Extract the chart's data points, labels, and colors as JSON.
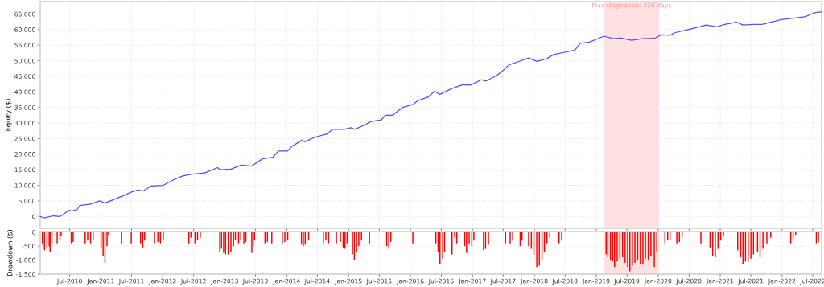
{
  "chart_data": [
    {
      "type": "line",
      "ylabel": "Equity ($)",
      "xlim": [
        "2010-01-08",
        "2022-08-22"
      ],
      "ylim": [
        -3800,
        69000
      ],
      "yticks": [
        0,
        {
          "value": 5000,
          "label": "5,000"
        },
        {
          "value": 10000,
          "label": "10,000"
        },
        {
          "value": 15000,
          "label": "15,000"
        },
        {
          "value": 20000,
          "label": "20,000"
        },
        {
          "value": 25000,
          "label": "25,000"
        },
        {
          "value": 30000,
          "label": "30,000"
        },
        {
          "value": 35000,
          "label": "35,000"
        },
        {
          "value": 40000,
          "label": "40,000"
        },
        {
          "value": 45000,
          "label": "45,000"
        },
        {
          "value": 50000,
          "label": "50,000"
        },
        {
          "value": 55000,
          "label": "55,000"
        },
        {
          "value": 60000,
          "label": "60,000"
        },
        {
          "value": 65000,
          "label": "65,000"
        }
      ],
      "xticks": [
        {
          "value": "2010-07-01",
          "label": null
        },
        {
          "value": "2011-01-01",
          "label": null
        },
        {
          "value": "2011-07-01",
          "label": null
        },
        {
          "value": "2012-01-01",
          "label": null
        },
        {
          "value": "2012-07-01",
          "label": null
        },
        {
          "value": "2013-01-01",
          "label": null
        },
        {
          "value": "2013-07-01",
          "label": null
        },
        {
          "value": "2014-01-01",
          "label": null
        },
        {
          "value": "2014-07-01",
          "label": null
        },
        {
          "value": "2015-01-01",
          "label": null
        },
        {
          "value": "2015-07-01",
          "label": null
        },
        {
          "value": "2016-01-01",
          "label": null
        },
        {
          "value": "2016-07-01",
          "label": null
        },
        {
          "value": "2017-01-01",
          "label": null
        },
        {
          "value": "2017-07-01",
          "label": null
        },
        {
          "value": "2018-01-01",
          "label": null
        },
        {
          "value": "2018-07-01",
          "label": null
        },
        {
          "value": "2019-01-01",
          "label": null
        },
        {
          "value": "2019-07-01",
          "label": null
        },
        {
          "value": "2020-01-01",
          "label": null
        },
        {
          "value": "2020-07-01",
          "label": null
        },
        {
          "value": "2021-01-01",
          "label": null
        },
        {
          "value": "2021-07-01",
          "label": null
        },
        {
          "value": "2022-01-01",
          "label": null
        },
        {
          "value": "2022-07-01",
          "label": null
        }
      ],
      "tick_labels": "y",
      "grid": true,
      "bands": [
        {
          "axis": "x",
          "from": "2019-02-15",
          "to": "2020-01-07",
          "label": "Max stagnation: 326 days",
          "color": "#ffe1e1"
        }
      ],
      "series": [
        {
          "color": "#4f4ff5",
          "x": [
            "2010-01-08",
            "2010-02-01",
            "2010-03-25",
            "2010-05-05",
            "2010-06-28",
            "2010-07-13",
            "2010-08-13",
            "2010-08-30",
            "2010-11-01",
            "2010-12-25",
            "2011-01-25",
            "2011-05-06",
            "2011-06-28",
            "2011-08-06",
            "2011-09-08",
            "2011-10-25",
            "2012-01-03",
            "2012-03-13",
            "2012-04-28",
            "2012-06-15",
            "2012-09-03",
            "2012-11-19",
            "2012-12-04",
            "2013-02-06",
            "2013-04-07",
            "2013-06-09",
            "2013-08-10",
            "2013-10-12",
            "2013-11-12",
            "2014-01-06",
            "2014-01-31",
            "2014-04-01",
            "2014-04-16",
            "2014-06-19",
            "2014-08-28",
            "2014-09-28",
            "2014-12-07",
            "2015-01-15",
            "2015-02-08",
            "2015-04-10",
            "2015-05-12",
            "2015-07-13",
            "2015-08-06",
            "2015-09-15",
            "2015-11-16",
            "2016-01-18",
            "2016-02-13",
            "2016-04-13",
            "2016-05-22",
            "2016-06-22",
            "2016-09-01",
            "2016-11-04",
            "2016-12-19",
            "2017-02-22",
            "2017-03-22",
            "2017-05-25",
            "2017-07-01",
            "2017-08-04",
            "2017-09-28",
            "2017-11-28",
            "2018-01-16",
            "2018-03-16",
            "2018-04-25",
            "2018-07-04",
            "2018-08-28",
            "2018-09-28",
            "2018-11-22",
            "2019-02-16",
            "2019-04-10",
            "2019-05-28",
            "2019-07-28",
            "2019-10-01",
            "2019-12-10",
            "2020-01-19",
            "2020-03-13",
            "2020-04-07",
            "2020-07-10",
            "2020-09-01",
            "2020-10-10",
            "2020-12-13",
            "2021-01-28",
            "2021-04-07",
            "2021-05-16",
            "2021-07-16",
            "2021-09-04",
            "2021-12-28",
            "2022-05-16",
            "2022-07-10",
            "2022-08-20"
          ],
          "values": [
            0,
            -500,
            200,
            0,
            2000,
            1700,
            2200,
            3500,
            4000,
            5000,
            4300,
            6500,
            7800,
            8500,
            8200,
            9800,
            10000,
            12000,
            13000,
            13500,
            14000,
            15700,
            15000,
            15200,
            16500,
            16200,
            18500,
            19000,
            21000,
            21000,
            22500,
            24500,
            24000,
            25500,
            26500,
            28000,
            28000,
            28500,
            28000,
            29500,
            30500,
            31000,
            32500,
            32500,
            35000,
            36000,
            37200,
            38300,
            40200,
            39200,
            41100,
            42300,
            42200,
            43900,
            43500,
            45300,
            46900,
            48700,
            49700,
            50900,
            49800,
            50700,
            52000,
            52800,
            53400,
            55600,
            56000,
            57900,
            57100,
            57300,
            56600,
            57100,
            57200,
            58300,
            58200,
            59000,
            60200,
            60900,
            61500,
            60900,
            61700,
            62400,
            61500,
            61700,
            61700,
            63200,
            64100,
            65400,
            65700
          ]
        }
      ]
    },
    {
      "type": "bar",
      "ylabel": "Drawdown ($)",
      "xlim": [
        "2010-01-08",
        "2022-08-22"
      ],
      "ylim": [
        -1500,
        20
      ],
      "yticks": [
        0,
        {
          "value": -500,
          "label": "-500"
        },
        {
          "value": -1000,
          "label": "-1,000"
        },
        {
          "value": -1500,
          "label": "-1,500"
        }
      ],
      "xticks": [
        {
          "value": "2010-07-01",
          "label": "Jul-2010"
        },
        {
          "value": "2011-01-01",
          "label": "Jan-2011"
        },
        {
          "value": "2011-07-01",
          "label": "Jul-2011"
        },
        {
          "value": "2012-01-01",
          "label": "Jan-2012"
        },
        {
          "value": "2012-07-01",
          "label": "Jul-2012"
        },
        {
          "value": "2013-01-01",
          "label": "Jan-2013"
        },
        {
          "value": "2013-07-01",
          "label": "Jul-2013"
        },
        {
          "value": "2014-01-01",
          "label": "Jan-2014"
        },
        {
          "value": "2014-07-01",
          "label": "Jul-2014"
        },
        {
          "value": "2015-01-01",
          "label": "Jan-2015"
        },
        {
          "value": "2015-07-01",
          "label": "Jul-2015"
        },
        {
          "value": "2016-01-01",
          "label": "Jan-2016"
        },
        {
          "value": "2016-07-01",
          "label": "Jul-2016"
        },
        {
          "value": "2017-01-01",
          "label": "Jan-2017"
        },
        {
          "value": "2017-07-01",
          "label": "Jul-2017"
        },
        {
          "value": "2018-01-01",
          "label": "Jan-2018"
        },
        {
          "value": "2018-07-01",
          "label": "Jul-2018"
        },
        {
          "value": "2019-01-01",
          "label": "Jan-2019"
        },
        {
          "value": "2019-07-01",
          "label": "Jul-2019"
        },
        {
          "value": "2020-01-01",
          "label": "Jan-2020"
        },
        {
          "value": "2020-07-01",
          "label": "Jul-2020"
        },
        {
          "value": "2021-01-01",
          "label": "Jan-2021"
        },
        {
          "value": "2021-07-01",
          "label": "Jul-2021"
        },
        {
          "value": "2022-01-01",
          "label": "Jan-2022"
        },
        {
          "value": "2022-07-01",
          "label": "Jul-2022"
        }
      ],
      "grid": true,
      "bands": [
        {
          "axis": "x",
          "from": "2019-02-15",
          "to": "2020-01-07",
          "color": "#ffe1e1"
        }
      ],
      "series": [
        {
          "color": "#ff0000",
          "x": [
            "2010-01-21",
            "2010-02-02",
            "2010-02-17",
            "2010-03-02",
            "2010-03-07",
            "2010-03-18",
            "2010-04-18",
            "2010-05-04",
            "2010-05-11",
            "2010-07-10",
            "2010-07-21",
            "2010-09-30",
            "2010-10-15",
            "2010-11-01",
            "2010-11-16",
            "2011-01-02",
            "2011-01-14",
            "2011-01-25",
            "2011-02-06",
            "2011-02-15",
            "2011-05-02",
            "2011-06-29",
            "2011-08-23",
            "2011-09-05",
            "2011-09-16",
            "2011-11-13",
            "2011-12-03",
            "2011-12-18",
            "2012-01-04",
            "2012-06-03",
            "2012-06-15",
            "2012-07-09",
            "2012-07-24",
            "2012-08-09",
            "2012-12-02",
            "2012-12-12",
            "2012-12-25",
            "2013-01-05",
            "2013-01-21",
            "2013-02-06",
            "2013-02-21",
            "2013-03-04",
            "2013-03-23",
            "2013-04-05",
            "2013-04-23",
            "2013-05-05",
            "2013-06-09",
            "2013-06-17",
            "2013-06-25",
            "2013-08-26",
            "2013-09-09",
            "2013-10-05",
            "2013-12-06",
            "2013-12-21",
            "2014-01-07",
            "2014-03-29",
            "2014-04-09",
            "2014-04-20",
            "2014-05-10",
            "2014-08-05",
            "2014-08-20",
            "2014-09-05",
            "2014-10-21",
            "2014-11-14",
            "2014-11-30",
            "2014-12-11",
            "2014-12-23",
            "2015-01-24",
            "2015-02-04",
            "2015-02-17",
            "2015-03-02",
            "2015-03-18",
            "2015-05-04",
            "2015-08-14",
            "2015-08-26",
            "2015-09-07",
            "2016-01-15",
            "2016-05-30",
            "2016-06-12",
            "2016-06-23",
            "2016-07-09",
            "2016-07-20",
            "2016-09-02",
            "2016-09-18",
            "2016-09-30",
            "2016-11-16",
            "2016-11-27",
            "2016-12-12",
            "2016-12-28",
            "2017-01-09",
            "2017-03-07",
            "2017-03-19",
            "2017-04-05",
            "2017-07-15",
            "2017-08-11",
            "2017-08-26",
            "2017-10-09",
            "2017-10-20",
            "2017-11-28",
            "2017-12-14",
            "2017-12-29",
            "2018-01-15",
            "2018-01-30",
            "2018-02-15",
            "2018-03-01",
            "2018-03-16",
            "2018-04-02",
            "2018-05-26",
            "2018-06-11",
            "2019-02-28",
            "2019-03-10",
            "2019-03-26",
            "2019-04-08",
            "2019-04-19",
            "2019-05-04",
            "2019-05-20",
            "2019-06-05",
            "2019-06-20",
            "2019-07-05",
            "2019-07-18",
            "2019-08-02",
            "2019-08-17",
            "2019-09-02",
            "2019-09-18",
            "2019-10-03",
            "2019-10-18",
            "2019-11-04",
            "2019-11-19",
            "2019-12-09",
            "2019-12-24",
            "2020-02-10",
            "2020-02-26",
            "2020-03-11",
            "2020-04-20",
            "2020-05-05",
            "2020-05-21",
            "2020-09-09",
            "2020-11-02",
            "2020-11-18",
            "2020-12-03",
            "2020-12-19",
            "2021-01-04",
            "2021-01-20",
            "2021-04-14",
            "2021-05-02",
            "2021-05-15",
            "2021-05-30",
            "2021-06-15",
            "2021-07-01",
            "2021-07-16",
            "2021-08-09",
            "2021-08-24",
            "2021-09-10",
            "2021-10-03",
            "2021-10-26",
            "2022-02-21",
            "2022-03-07",
            "2022-03-22",
            "2022-07-22",
            "2022-08-03"
          ],
          "values": [
            -400,
            -650,
            -600,
            -500,
            -700,
            -400,
            -400,
            -300,
            -150,
            -400,
            -350,
            -400,
            -300,
            -400,
            -300,
            -550,
            -850,
            -1100,
            -500,
            -100,
            -400,
            -400,
            -400,
            -550,
            -300,
            -400,
            -350,
            -400,
            -250,
            -400,
            -200,
            -400,
            -300,
            -200,
            -700,
            -600,
            -750,
            -800,
            -800,
            -700,
            -500,
            -300,
            -400,
            -300,
            -400,
            -350,
            -750,
            -500,
            -300,
            -400,
            -350,
            -400,
            -400,
            -350,
            -300,
            -450,
            -500,
            -450,
            -300,
            -400,
            -300,
            -400,
            -400,
            -350,
            -550,
            -600,
            -400,
            -800,
            -1000,
            -700,
            -500,
            -300,
            -400,
            -500,
            -600,
            -350,
            -400,
            -400,
            -700,
            -1150,
            -950,
            -700,
            -800,
            -200,
            -400,
            -500,
            -750,
            -400,
            -500,
            -300,
            -650,
            -600,
            -450,
            -400,
            -400,
            -300,
            -500,
            -300,
            -500,
            -600,
            -800,
            -1250,
            -1200,
            -1000,
            -700,
            -400,
            -200,
            -400,
            -300,
            -800,
            -900,
            -1000,
            -1050,
            -1250,
            -1050,
            -950,
            -900,
            -1100,
            -1250,
            -1400,
            -1200,
            -1100,
            -1000,
            -1150,
            -1150,
            -950,
            -1000,
            -850,
            -1250,
            -700,
            -400,
            -300,
            -300,
            -400,
            -350,
            -200,
            -400,
            -550,
            -850,
            -900,
            -600,
            -300,
            -150,
            -650,
            -900,
            -1150,
            -1050,
            -1050,
            -950,
            -800,
            -700,
            -900,
            -600,
            -400,
            -200,
            -400,
            -250,
            -100,
            -400,
            -350
          ]
        }
      ]
    }
  ]
}
